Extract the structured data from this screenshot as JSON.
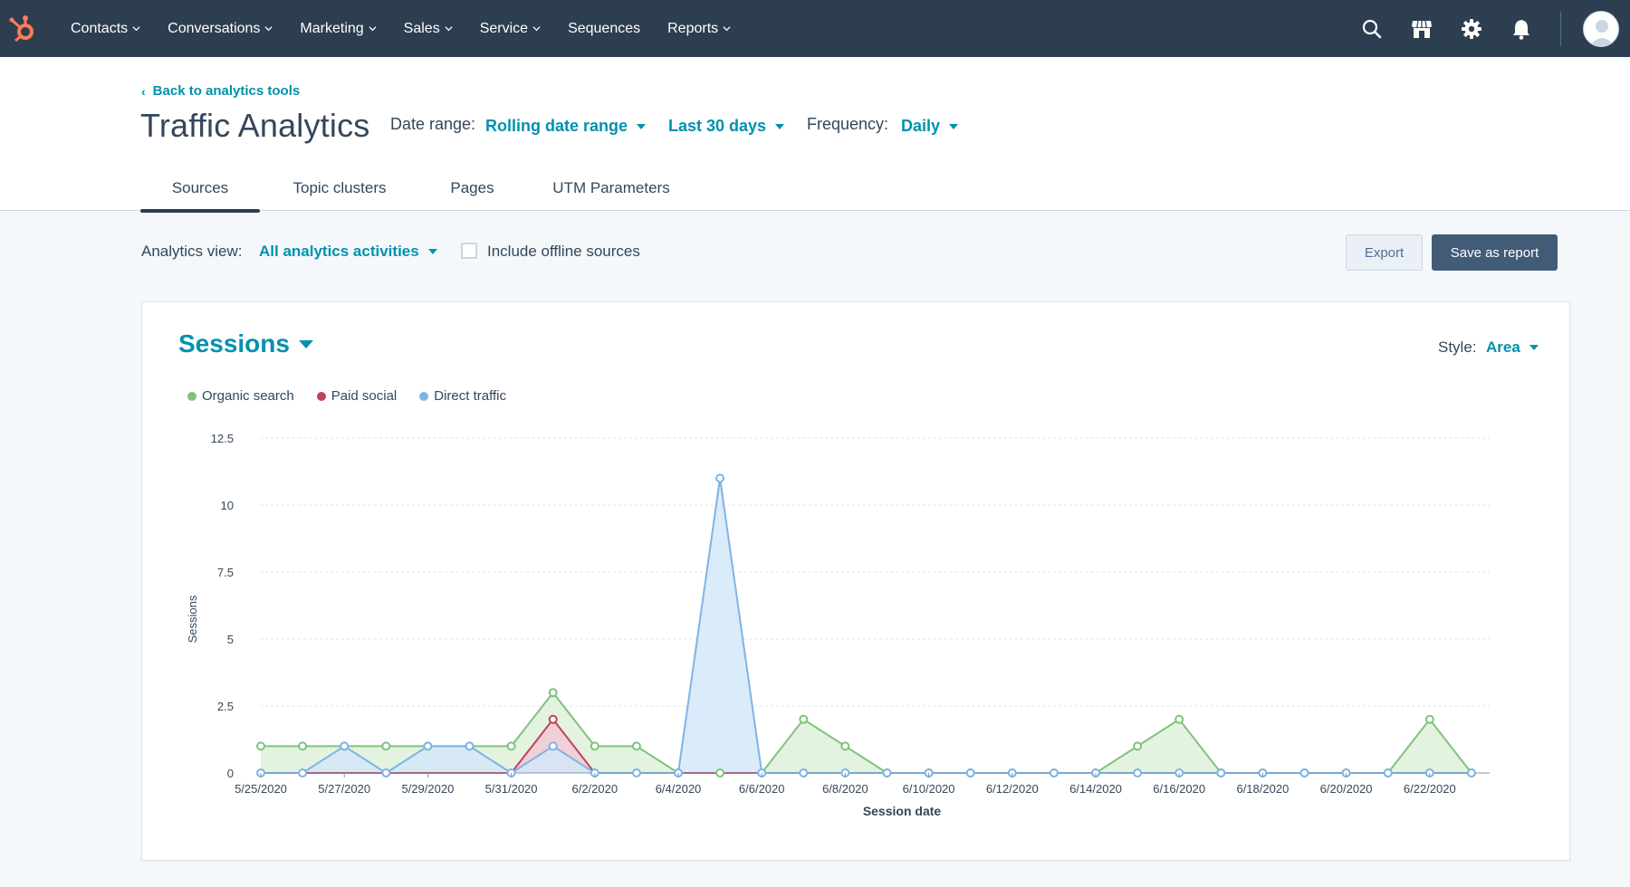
{
  "nav": {
    "items": [
      {
        "label": "Contacts",
        "dropdown": true
      },
      {
        "label": "Conversations",
        "dropdown": true
      },
      {
        "label": "Marketing",
        "dropdown": true
      },
      {
        "label": "Sales",
        "dropdown": true
      },
      {
        "label": "Service",
        "dropdown": true
      },
      {
        "label": "Sequences",
        "dropdown": false
      },
      {
        "label": "Reports",
        "dropdown": true
      }
    ],
    "icons": [
      "search-icon",
      "marketplace-icon",
      "settings-icon",
      "notifications-icon"
    ]
  },
  "header": {
    "back_link": "Back to analytics tools",
    "title": "Traffic Analytics",
    "date_range_label": "Date range:",
    "date_range_value": "Rolling date range",
    "period_value": "Last 30 days",
    "frequency_label": "Frequency:",
    "frequency_value": "Daily"
  },
  "tabs": [
    {
      "label": "Sources",
      "active": true
    },
    {
      "label": "Topic clusters",
      "active": false
    },
    {
      "label": "Pages",
      "active": false
    },
    {
      "label": "UTM Parameters",
      "active": false
    }
  ],
  "toolbar": {
    "analytics_view_label": "Analytics view:",
    "analytics_view_value": "All analytics activities",
    "offline_label": "Include offline sources",
    "offline_checked": false,
    "export_label": "Export",
    "save_label": "Save as report"
  },
  "card": {
    "metric": "Sessions",
    "style_label": "Style:",
    "style_value": "Area"
  },
  "colors": {
    "organic": "#7fc37c",
    "paid": "#c0415f",
    "direct": "#7fb3e6",
    "accent": "#0091ae",
    "nav_bg": "#2d3e50"
  },
  "chart_data": {
    "type": "area",
    "ylabel": "Sessions",
    "xlabel": "Session date",
    "ylim": [
      0,
      12.5
    ],
    "y_ticks": [
      "12.5",
      "10",
      "7.5",
      "5",
      "2.5",
      "0"
    ],
    "y_tick_values": [
      12.5,
      10,
      7.5,
      5,
      2.5,
      0
    ],
    "x_tick_labels": [
      "5/25/2020",
      "5/27/2020",
      "5/29/2020",
      "5/31/2020",
      "6/2/2020",
      "6/4/2020",
      "6/6/2020",
      "6/8/2020",
      "6/10/2020",
      "6/12/2020",
      "6/14/2020",
      "6/16/2020",
      "6/18/2020",
      "6/20/2020",
      "6/22/2020"
    ],
    "categories": [
      "5/25/2020",
      "5/26/2020",
      "5/27/2020",
      "5/28/2020",
      "5/29/2020",
      "5/30/2020",
      "5/31/2020",
      "6/1/2020",
      "6/2/2020",
      "6/3/2020",
      "6/4/2020",
      "6/5/2020",
      "6/6/2020",
      "6/7/2020",
      "6/8/2020",
      "6/9/2020",
      "6/10/2020",
      "6/11/2020",
      "6/12/2020",
      "6/13/2020",
      "6/14/2020",
      "6/15/2020",
      "6/16/2020",
      "6/17/2020",
      "6/18/2020",
      "6/19/2020",
      "6/20/2020",
      "6/21/2020",
      "6/22/2020",
      "6/23/2020"
    ],
    "series": [
      {
        "name": "Organic search",
        "color": "#7fc37c",
        "fill": "#dff0da",
        "values": [
          1,
          1,
          1,
          1,
          1,
          1,
          1,
          3,
          1,
          1,
          0,
          0,
          0,
          2,
          1,
          0,
          0,
          0,
          0,
          0,
          0,
          1,
          2,
          0,
          0,
          0,
          0,
          0,
          2,
          0
        ]
      },
      {
        "name": "Paid social",
        "color": "#c0415f",
        "fill": "#f2c9d4",
        "values": [
          0,
          0,
          0,
          0,
          0,
          0,
          0,
          2,
          0,
          0,
          0,
          0,
          0,
          0,
          0,
          0,
          0,
          0,
          0,
          0,
          0,
          0,
          0,
          0,
          0,
          0,
          0,
          0,
          0,
          0
        ]
      },
      {
        "name": "Direct traffic",
        "color": "#7fb3e6",
        "fill": "#d4e7f8",
        "values": [
          0,
          0,
          1,
          0,
          1,
          1,
          0,
          1,
          0,
          0,
          0,
          11,
          0,
          0,
          0,
          0,
          0,
          0,
          0,
          0,
          0,
          0,
          0,
          0,
          0,
          0,
          0,
          0,
          0,
          0
        ]
      }
    ],
    "legend": [
      "Organic search",
      "Paid social",
      "Direct traffic"
    ],
    "grid": true
  }
}
